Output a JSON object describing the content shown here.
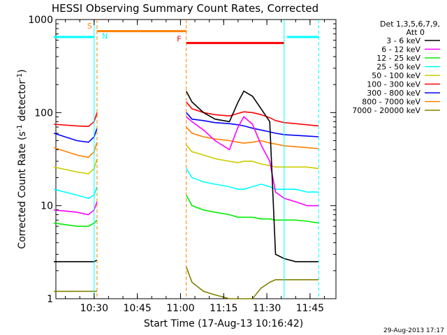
{
  "window": {
    "footer_timestamp": "29-Aug-2013 17:17"
  },
  "chart_data": {
    "type": "line",
    "title": "HESSI Observing Summary Count Rates, Corrected",
    "xlabel": "Start Time (17-Aug-13 10:16:42)",
    "ylabel_main": "Corrected Count Rate (s",
    "ylabel_sup1": "-1",
    "ylabel_mid": " detector",
    "ylabel_sup2": "-1",
    "ylabel_end": ")",
    "y_scale": "log",
    "ylim": [
      1,
      1000
    ],
    "xlim": [
      "10:16:42",
      "11:54:00"
    ],
    "y_tick_labels": [
      "1",
      "10",
      "100",
      "1000"
    ],
    "x_tick_labels": [
      "10:30",
      "10:45",
      "11:00",
      "11:15",
      "11:30",
      "11:45"
    ],
    "grid": false,
    "legend": {
      "placement": "right",
      "header_line1": "Det 1,3,5,6,7,9,",
      "header_line2": "Att 0",
      "entries": [
        {
          "label": "3 - 6 keV",
          "color": "#000000"
        },
        {
          "label": "6 - 12 keV",
          "color": "#ff00ff"
        },
        {
          "label": "12 - 25 keV",
          "color": "#00ee00"
        },
        {
          "label": "25 - 50 keV",
          "color": "#00ffff"
        },
        {
          "label": "50 - 100 keV",
          "color": "#cccc00"
        },
        {
          "label": "100 - 300 keV",
          "color": "#ff0000"
        },
        {
          "label": "300 - 800 keV",
          "color": "#0000ff"
        },
        {
          "label": "800 - 7000 keV",
          "color": "#ff8000"
        },
        {
          "label": "7000 - 20000 keV",
          "color": "#808000"
        }
      ]
    },
    "segments": [
      {
        "x": [
          "10:16",
          "10:24",
          "10:28",
          "10:30",
          "10:31"
        ],
        "series": [
          {
            "color": "#ff0000",
            "values": [
              75,
              72,
              71,
              80,
              100
            ]
          },
          {
            "color": "#0000ff",
            "values": [
              60,
              50,
              48,
              55,
              68
            ]
          },
          {
            "color": "#ff8000",
            "values": [
              42,
              35,
              33,
              38,
              48
            ]
          },
          {
            "color": "#cccc00",
            "values": [
              26,
              23,
              22,
              25,
              32
            ]
          },
          {
            "color": "#00ffff",
            "values": [
              15,
              13,
              12,
              13,
              16
            ]
          },
          {
            "color": "#ff00ff",
            "values": [
              9,
              8.5,
              8,
              9,
              11
            ]
          },
          {
            "color": "#00ee00",
            "values": [
              6.5,
              6,
              6,
              6.5,
              7
            ]
          },
          {
            "color": "#000000",
            "values": [
              2.5,
              2.5,
              2.5,
              2.5,
              2.6
            ]
          },
          {
            "color": "#808000",
            "values": [
              1.2,
              1.2,
              1.2,
              1.2,
              1.2
            ]
          }
        ]
      },
      {
        "x": [
          "11:02",
          "11:04",
          "11:08",
          "11:12",
          "11:17",
          "11:20",
          "11:22",
          "11:25",
          "11:28",
          "11:31",
          "11:33",
          "11:36",
          "11:40",
          "11:44",
          "11:48"
        ],
        "series": [
          {
            "color": "#ff0000",
            "values": [
              130,
              110,
              100,
              95,
              92,
              98,
              102,
              100,
              95,
              88,
              82,
              78,
              76,
              74,
              72
            ]
          },
          {
            "color": "#0000ff",
            "values": [
              100,
              85,
              82,
              78,
              76,
              74,
              72,
              68,
              65,
              62,
              60,
              58,
              57,
              56,
              55
            ]
          },
          {
            "color": "#ff8000",
            "values": [
              70,
              60,
              55,
              52,
              50,
              48,
              47,
              48,
              50,
              47,
              46,
              44,
              43,
              42,
              41
            ]
          },
          {
            "color": "#cccc00",
            "values": [
              45,
              38,
              35,
              32,
              30,
              29,
              30,
              30,
              28,
              27,
              26,
              26,
              26,
              26,
              25
            ]
          },
          {
            "color": "#00ffff",
            "values": [
              25,
              20,
              18,
              17,
              16,
              15,
              15,
              16,
              17,
              16,
              15,
              15,
              15,
              14,
              14
            ]
          },
          {
            "color": "#ff00ff",
            "values": [
              90,
              80,
              65,
              50,
              40,
              70,
              90,
              75,
              45,
              30,
              14,
              12,
              11,
              10,
              10
            ]
          },
          {
            "color": "#00ee00",
            "values": [
              13,
              10,
              9,
              8.5,
              8,
              7.5,
              7.5,
              7.5,
              7.2,
              7.2,
              7,
              7,
              7,
              6.8,
              6.5
            ]
          },
          {
            "color": "#000000",
            "values": [
              170,
              130,
              100,
              85,
              80,
              130,
              170,
              150,
              110,
              80,
              3,
              2.7,
              2.5,
              2.5,
              2.5
            ]
          },
          {
            "color": "#808000",
            "values": [
              2.2,
              1.5,
              1.2,
              1.1,
              1.0,
              1.0,
              1.0,
              1.0,
              1.3,
              1.5,
              1.6,
              1.6,
              1.6,
              1.6,
              1.6
            ]
          }
        ]
      }
    ],
    "bars": [
      {
        "color": "#00ffff",
        "start": "10:16",
        "end": "10:30"
      },
      {
        "color": "#ff8000",
        "start": "10:31",
        "end": "11:02"
      },
      {
        "color": "#ff0000",
        "start": "11:02",
        "end": "11:36"
      },
      {
        "color": "#00ffff",
        "start": "11:37",
        "end": "11:48"
      }
    ],
    "bar_levels": [
      650,
      750,
      560,
      650
    ],
    "markers": [
      {
        "text": "S",
        "color": "#ff8000",
        "x": "10:30",
        "y": 800,
        "anchor": "end"
      },
      {
        "text": "N",
        "color": "#00ffff",
        "x": "10:32",
        "y": 620,
        "anchor": "start"
      },
      {
        "text": "F",
        "color": "#ff0000",
        "x": "11:01",
        "y": 580,
        "anchor": "end"
      }
    ],
    "vlines": [
      {
        "color": "#00ffff",
        "x": "10:30",
        "dash": false
      },
      {
        "color": "#ff8000",
        "x": "10:31",
        "dash": true
      },
      {
        "color": "#ff8000",
        "x": "11:02",
        "dash": true
      },
      {
        "color": "#00ffff",
        "x": "11:36",
        "dash": false
      },
      {
        "color": "#00ffff",
        "x": "11:48",
        "dash": true
      }
    ]
  }
}
